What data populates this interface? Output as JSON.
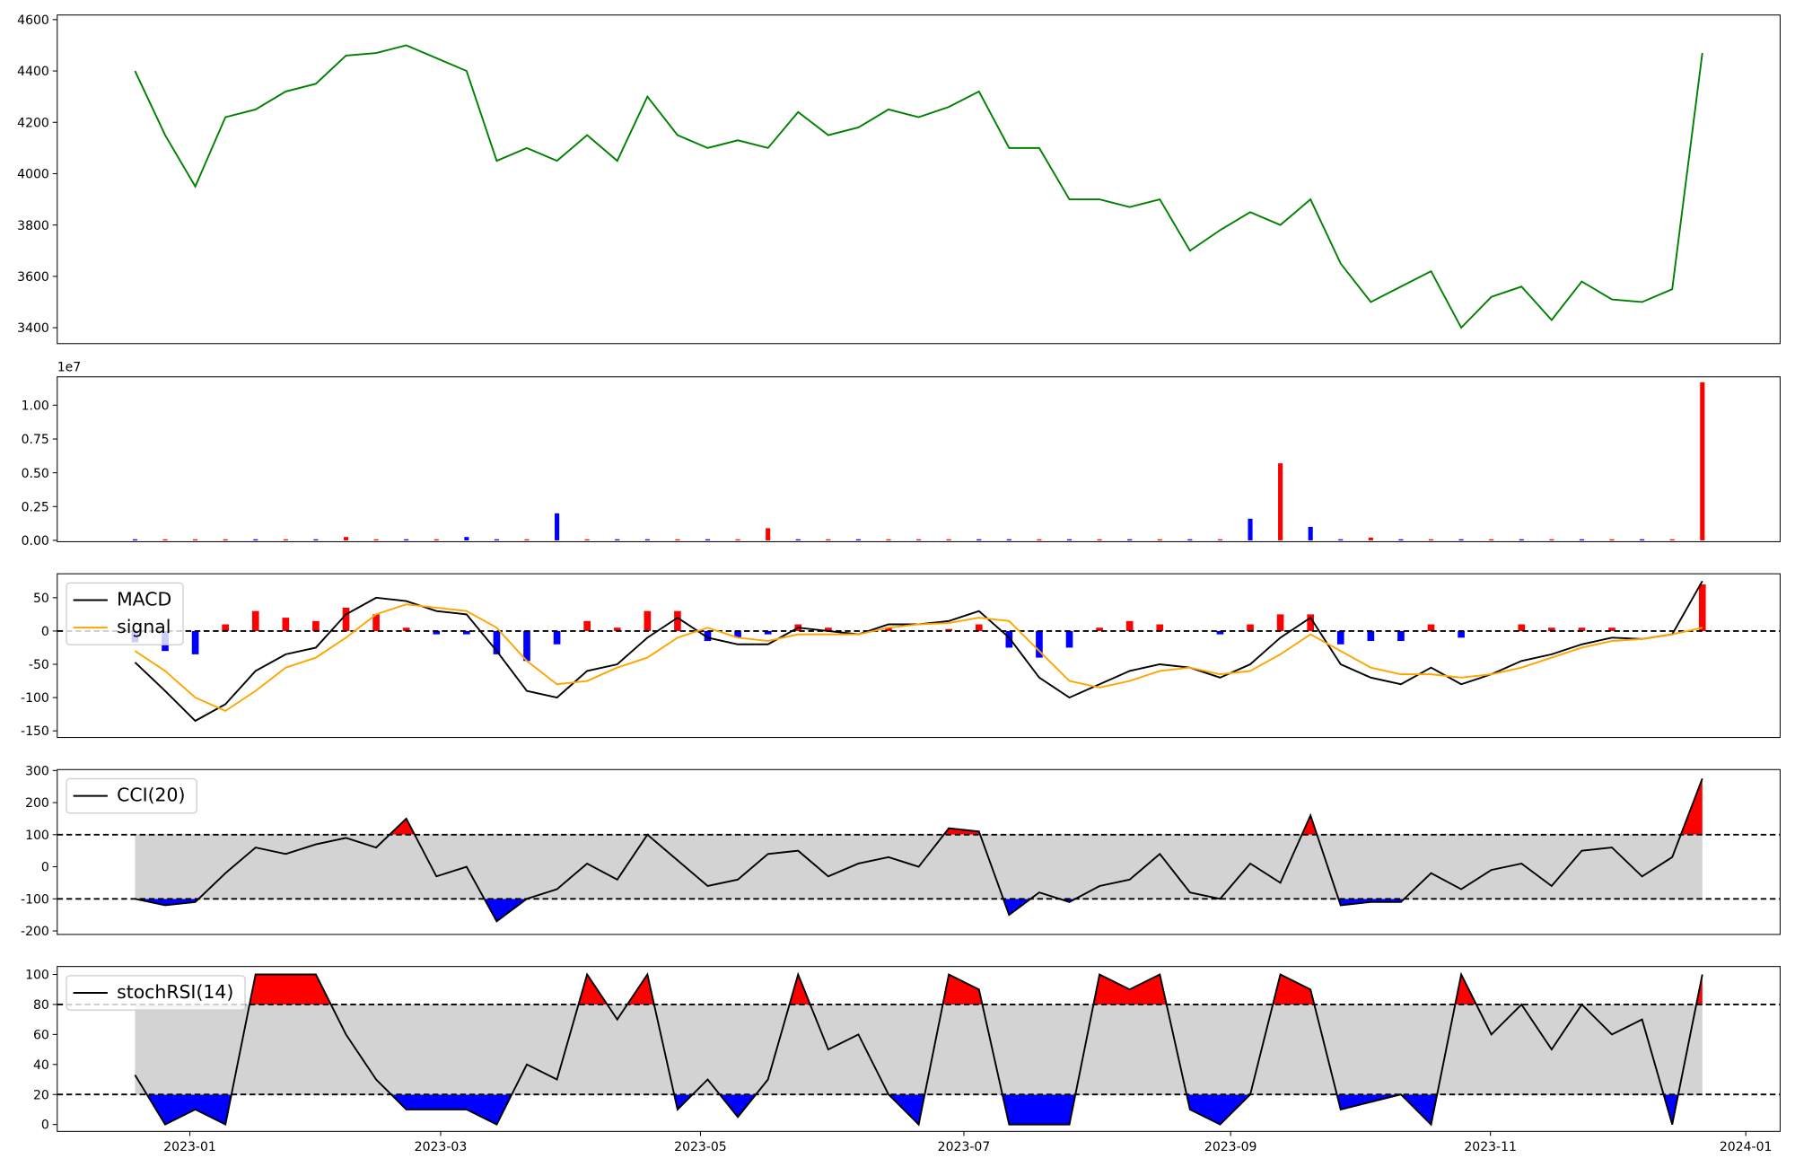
{
  "chart_data": [
    {
      "type": "line",
      "xlim": [
        -2.58,
        54.58
      ],
      "ylim": [
        3338,
        4618
      ],
      "yticks": [
        3400,
        3600,
        3800,
        4000,
        4200,
        4400,
        4600
      ],
      "series": [
        {
          "color": "green",
          "values": [
            4400,
            4150,
            3950,
            4220,
            4250,
            4320,
            4350,
            4460,
            4470,
            4500,
            4450,
            4400,
            4050,
            4100,
            4050,
            4150,
            4050,
            4300,
            4150,
            4100,
            4130,
            4100,
            4240,
            4150,
            4180,
            4250,
            4220,
            4260,
            4320,
            4100,
            4100,
            3900,
            3900,
            3870,
            3900,
            3700,
            3780,
            3850,
            3800,
            3900,
            3650,
            3500,
            3560,
            3620,
            3400,
            3520,
            3560,
            3430,
            3580,
            3510,
            3500,
            3550,
            4470
          ]
        }
      ]
    },
    {
      "type": "bar",
      "xlim": [
        -2.58,
        54.58
      ],
      "ylim": [
        -0.01,
        1.21
      ],
      "y_offset_label": "1e7",
      "yticks": [
        {
          "value": 0,
          "label": "0.00"
        },
        {
          "value": 0.25,
          "label": "0.25"
        },
        {
          "value": 0.5,
          "label": "0.50"
        },
        {
          "value": 0.75,
          "label": "0.75"
        },
        {
          "value": 1,
          "label": "1.00"
        }
      ],
      "values": [
        0.008,
        0.008,
        0.008,
        0.008,
        0.008,
        0.008,
        0.008,
        0.025,
        0.008,
        0.008,
        0.008,
        0.025,
        0.008,
        0.008,
        0.2,
        0.008,
        0.008,
        0.008,
        0.008,
        0.008,
        0.008,
        0.09,
        0.008,
        0.008,
        0.008,
        0.008,
        0.008,
        0.008,
        0.008,
        0.008,
        0.008,
        0.008,
        0.008,
        0.008,
        0.008,
        0.008,
        0.008,
        0.16,
        0.57,
        0.1,
        0.008,
        0.02,
        0.008,
        0.008,
        0.008,
        0.008,
        0.008,
        0.008,
        0.008,
        0.008,
        0.008,
        0.008,
        1.17
      ],
      "colors": [
        "blue",
        "red",
        "red",
        "red",
        "blue",
        "red",
        "blue",
        "red",
        "red",
        "blue",
        "red",
        "blue",
        "blue",
        "red",
        "blue",
        "red",
        "blue",
        "blue",
        "red",
        "blue",
        "red",
        "red",
        "blue",
        "red",
        "blue",
        "red",
        "red",
        "red",
        "blue",
        "blue",
        "red",
        "blue",
        "red",
        "blue",
        "red",
        "blue",
        "red",
        "blue",
        "red",
        "blue",
        "blue",
        "red",
        "blue",
        "red",
        "blue",
        "red",
        "blue",
        "red",
        "blue",
        "red",
        "blue",
        "red",
        "red"
      ]
    },
    {
      "type": "line",
      "xlim": [
        -2.58,
        54.58
      ],
      "ylim": [
        -160,
        86
      ],
      "yticks": [
        -150,
        -100,
        -50,
        0,
        50
      ],
      "hlines": [
        0
      ],
      "legend": "upper left",
      "series": [
        {
          "name": "MACD",
          "color": "black",
          "values": [
            -47,
            -90,
            -135,
            -110,
            -60,
            -35,
            -25,
            25,
            50,
            45,
            30,
            25,
            -30,
            -90,
            -100,
            -60,
            -50,
            -10,
            20,
            -10,
            -20,
            -20,
            5,
            0,
            -5,
            10,
            10,
            15,
            30,
            -10,
            -70,
            -100,
            -80,
            -60,
            -50,
            -55,
            -70,
            -50,
            -10,
            20,
            -50,
            -70,
            -80,
            -55,
            -80,
            -65,
            -45,
            -35,
            -20,
            -10,
            -12,
            -5,
            75
          ]
        },
        {
          "name": "signal",
          "color": "orange",
          "values": [
            -30,
            -60,
            -100,
            -120,
            -90,
            -55,
            -40,
            -10,
            25,
            40,
            35,
            30,
            5,
            -45,
            -80,
            -75,
            -55,
            -40,
            -10,
            5,
            -10,
            -15,
            -5,
            -5,
            -5,
            5,
            10,
            12,
            20,
            15,
            -30,
            -75,
            -85,
            -75,
            -60,
            -55,
            -65,
            -60,
            -35,
            -5,
            -30,
            -55,
            -65,
            -65,
            -70,
            -65,
            -55,
            -40,
            -25,
            -15,
            -12,
            -5,
            5
          ]
        }
      ],
      "histogram": {
        "up_color": "red",
        "down_color": "blue",
        "values": [
          -17,
          -30,
          -35,
          10,
          30,
          20,
          15,
          35,
          25,
          5,
          -5,
          -5,
          -35,
          -45,
          -20,
          15,
          5,
          30,
          30,
          -15,
          -10,
          -5,
          10,
          5,
          0,
          5,
          0,
          3,
          10,
          -25,
          -40,
          -25,
          5,
          15,
          10,
          0,
          -5,
          10,
          25,
          25,
          -20,
          -15,
          -15,
          10,
          -10,
          0,
          10,
          5,
          5,
          5,
          0,
          0,
          70
        ]
      }
    },
    {
      "type": "line",
      "xlim": [
        -2.58,
        54.58
      ],
      "ylim": [
        -211,
        303
      ],
      "yticks": [
        -200,
        -100,
        0,
        100,
        200,
        300
      ],
      "hlines": [
        100,
        -100
      ],
      "legend": "upper left",
      "band_color": "lightgray",
      "above_color": "red",
      "below_color": "blue",
      "series": [
        {
          "name": "CCI(20)",
          "color": "black",
          "values": [
            -100,
            -120,
            -110,
            -20,
            60,
            40,
            70,
            90,
            60,
            150,
            -30,
            0,
            -170,
            -100,
            -70,
            10,
            -40,
            100,
            20,
            -60,
            -40,
            40,
            50,
            -30,
            10,
            30,
            0,
            120,
            110,
            -150,
            -80,
            -110,
            -60,
            -40,
            40,
            -80,
            -100,
            10,
            -50,
            160,
            -120,
            -110,
            -110,
            -20,
            -70,
            -10,
            10,
            -60,
            50,
            60,
            -30,
            30,
            275
          ]
        }
      ]
    },
    {
      "type": "line",
      "xlim": [
        -2.58,
        54.58
      ],
      "ylim": [
        -4.6,
        105.3
      ],
      "yticks": [
        0,
        20,
        40,
        60,
        80,
        100
      ],
      "hlines": [
        80,
        20
      ],
      "legend": "upper left",
      "band_color": "lightgray",
      "above_color": "red",
      "below_color": "blue",
      "xticks": [
        {
          "value": 1.82,
          "label": "2023-01"
        },
        {
          "value": 10.14,
          "label": "2023-03"
        },
        {
          "value": 18.76,
          "label": "2023-05"
        },
        {
          "value": 27.5,
          "label": "2023-07"
        },
        {
          "value": 36.35,
          "label": "2023-09"
        },
        {
          "value": 44.97,
          "label": "2023-11"
        },
        {
          "value": 53.44,
          "label": "2024-01"
        }
      ],
      "series": [
        {
          "name": "stochRSI(14)",
          "color": "black",
          "values": [
            33,
            0,
            10,
            0,
            100,
            100,
            100,
            60,
            30,
            10,
            10,
            10,
            0,
            40,
            30,
            100,
            70,
            100,
            10,
            30,
            5,
            30,
            100,
            50,
            60,
            20,
            0,
            100,
            90,
            0,
            0,
            0,
            100,
            90,
            100,
            10,
            0,
            20,
            100,
            90,
            10,
            15,
            20,
            0,
            100,
            60,
            80,
            50,
            80,
            60,
            70,
            0,
            100
          ]
        }
      ]
    }
  ]
}
